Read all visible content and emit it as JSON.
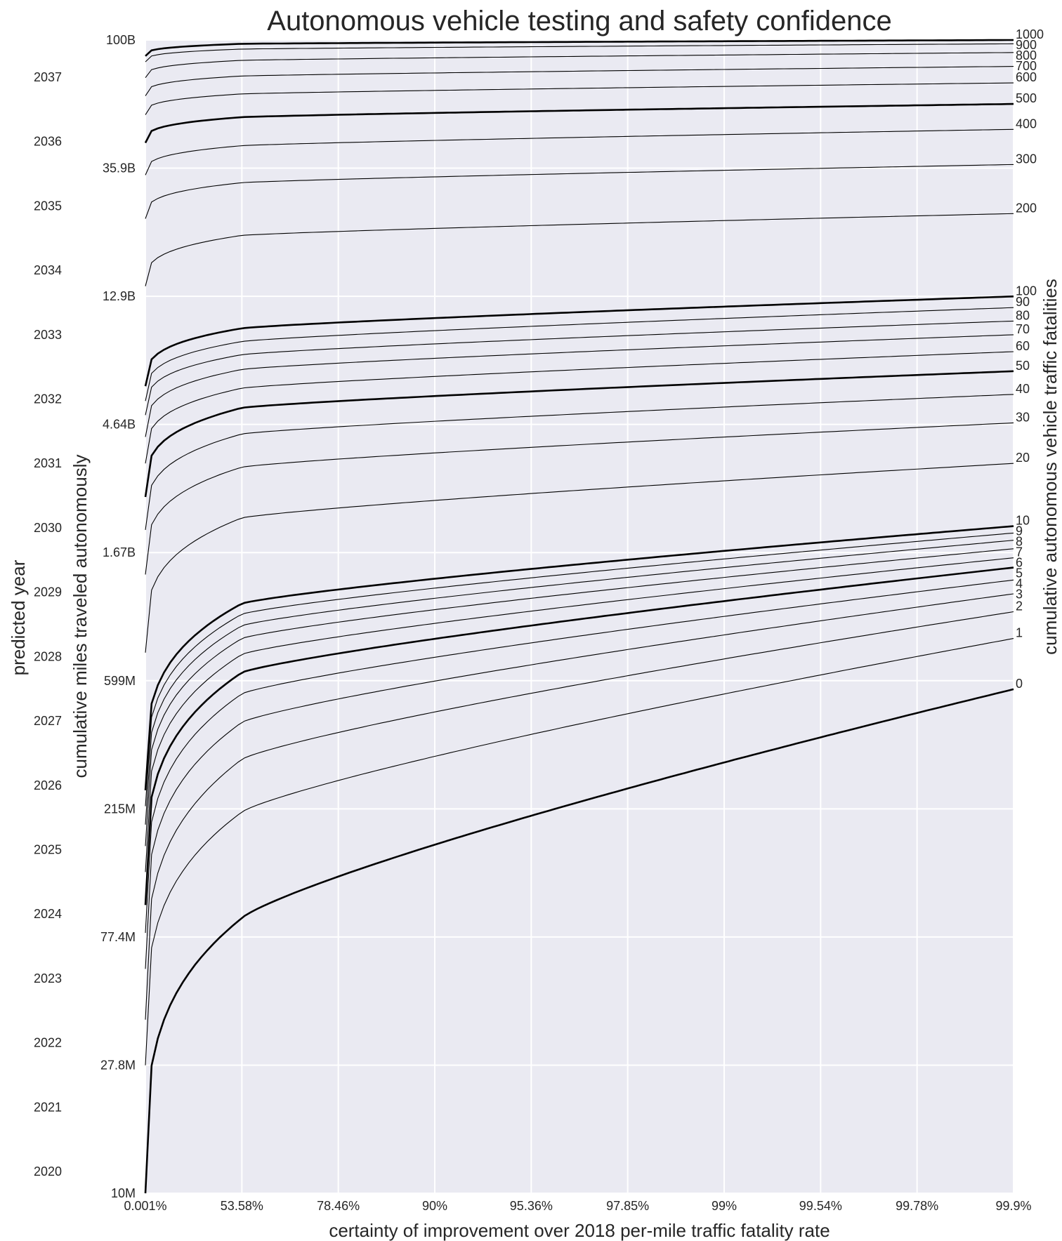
{
  "chart_data": {
    "type": "line",
    "title": "Autonomous vehicle testing and safety confidence",
    "xlabel": "certainty of improvement over 2018 per-mile traffic fatality rate",
    "ylabel": "cumulative miles traveled autonomously",
    "y_left_outer_label": "predicted year",
    "y_right_label": "cumulative autonomous vehicle traffic fatalities",
    "x_ticks": [
      "0.001%",
      "53.58%",
      "78.46%",
      "90%",
      "95.36%",
      "97.85%",
      "99%",
      "99.54%",
      "99.78%",
      "99.9%"
    ],
    "y_ticks": [
      "10M",
      "27.8M",
      "77.4M",
      "215M",
      "599M",
      "1.67B",
      "4.64B",
      "12.9B",
      "35.9B",
      "100B"
    ],
    "y_range_miles": [
      10000000,
      100000000000
    ],
    "y_scale": "log",
    "year_ticks": [
      "2020",
      "2021",
      "2022",
      "2023",
      "2024",
      "2025",
      "2026",
      "2027",
      "2028",
      "2029",
      "2030",
      "2031",
      "2032",
      "2033",
      "2034",
      "2035",
      "2036",
      "2037"
    ],
    "grid": true,
    "series": [
      {
        "name": "0",
        "x": [
          0.001,
          53.58,
          90,
          99.9
        ],
        "y": [
          10000000,
          90000000,
          215000000,
          560000000
        ]
      },
      {
        "name": "1",
        "x": [
          0.001,
          53.58,
          90,
          99.9
        ],
        "y": [
          27800000,
          210000000,
          420000000,
          840000000
        ]
      },
      {
        "name": "2",
        "x": [
          0.001,
          53.58,
          90,
          99.9
        ],
        "y": [
          40000000,
          320000000,
          580000000,
          1040000000
        ]
      },
      {
        "name": "3",
        "x": [
          0.001,
          53.58,
          90,
          99.9
        ],
        "y": [
          60000000,
          430000000,
          730000000,
          1200000000
        ]
      },
      {
        "name": "4",
        "x": [
          0.001,
          53.58,
          90,
          99.9
        ],
        "y": [
          80000000,
          540000000,
          870000000,
          1340000000
        ]
      },
      {
        "name": "5",
        "x": [
          0.001,
          53.58,
          90,
          99.9
        ],
        "y": [
          100000000,
          640000000,
          1000000000,
          1480000000
        ]
      },
      {
        "name": "6",
        "x": [
          0.001,
          53.58,
          90,
          99.9
        ],
        "y": [
          130000000,
          740000000,
          1120000000,
          1600000000
        ]
      },
      {
        "name": "7",
        "x": [
          0.001,
          53.58,
          90,
          99.9
        ],
        "y": [
          160000000,
          840000000,
          1240000000,
          1720000000
        ]
      },
      {
        "name": "8",
        "x": [
          0.001,
          53.58,
          90,
          99.9
        ],
        "y": [
          190000000,
          930000000,
          1360000000,
          1840000000
        ]
      },
      {
        "name": "9",
        "x": [
          0.001,
          53.58,
          90,
          99.9
        ],
        "y": [
          220000000,
          1020000000,
          1460000000,
          1950000000
        ]
      },
      {
        "name": "10",
        "x": [
          0.001,
          53.58,
          90,
          99.9
        ],
        "y": [
          250000000,
          1110000000,
          1570000000,
          2060000000
        ]
      },
      {
        "name": "20",
        "x": [
          0.001,
          53.58,
          90,
          99.9
        ],
        "y": [
          750000000,
          2200000000,
          2800000000,
          3400000000
        ]
      },
      {
        "name": "30",
        "x": [
          0.001,
          53.58,
          90,
          99.9
        ],
        "y": [
          1400000000,
          3300000000,
          4000000000,
          4700000000
        ]
      },
      {
        "name": "40",
        "x": [
          0.001,
          53.58,
          90,
          99.9
        ],
        "y": [
          2000000000,
          4300000000,
          5100000000,
          5900000000
        ]
      },
      {
        "name": "50",
        "x": [
          0.001,
          53.58,
          90,
          99.9
        ],
        "y": [
          2600000000,
          5300000000,
          6200000000,
          7100000000
        ]
      },
      {
        "name": "60",
        "x": [
          0.001,
          53.58,
          90,
          99.9
        ],
        "y": [
          3400000000,
          6200000000,
          7300000000,
          8300000000
        ]
      },
      {
        "name": "70",
        "x": [
          0.001,
          53.58,
          90,
          99.9
        ],
        "y": [
          4200000000,
          7200000000,
          8400000000,
          9500000000
        ]
      },
      {
        "name": "80",
        "x": [
          0.001,
          53.58,
          90,
          99.9
        ],
        "y": [
          5000000000,
          8100000000,
          9400000000,
          10600000000
        ]
      },
      {
        "name": "90",
        "x": [
          0.001,
          53.58,
          90,
          99.9
        ],
        "y": [
          5600000000,
          9000000000,
          10400000000,
          11800000000
        ]
      },
      {
        "name": "100",
        "x": [
          0.001,
          53.58,
          90,
          99.9
        ],
        "y": [
          6300000000,
          10000000000,
          11600000000,
          12900000000
        ]
      },
      {
        "name": "200",
        "x": [
          0.001,
          53.58,
          90,
          99.9
        ],
        "y": [
          14000000000,
          21000000000,
          23000000000,
          25000000000
        ]
      },
      {
        "name": "300",
        "x": [
          0.001,
          53.58,
          90,
          99.9
        ],
        "y": [
          24000000000,
          32000000000,
          34500000000,
          37000000000
        ]
      },
      {
        "name": "400",
        "x": [
          0.001,
          53.58,
          90,
          99.9
        ],
        "y": [
          34000000000,
          43000000000,
          46000000000,
          49000000000
        ]
      },
      {
        "name": "500",
        "x": [
          0.001,
          53.58,
          90,
          99.9
        ],
        "y": [
          44000000000,
          54000000000,
          57000000000,
          60000000000
        ]
      },
      {
        "name": "600",
        "x": [
          0.001,
          53.58,
          90,
          99.9
        ],
        "y": [
          55000000000,
          65000000000,
          68000000000,
          71000000000
        ]
      },
      {
        "name": "700",
        "x": [
          0.001,
          53.58,
          90,
          99.9
        ],
        "y": [
          64000000000,
          75000000000,
          78500000000,
          81000000000
        ]
      },
      {
        "name": "800",
        "x": [
          0.001,
          53.58,
          90,
          99.9
        ],
        "y": [
          74000000000,
          85000000000,
          88000000000,
          90500000000
        ]
      },
      {
        "name": "900",
        "x": [
          0.001,
          53.58,
          90,
          99.9
        ],
        "y": [
          84000000000,
          93000000000,
          95500000000,
          97000000000
        ]
      },
      {
        "name": "1000",
        "x": [
          0.001,
          53.58,
          90,
          99.9
        ],
        "y": [
          88000000000,
          97000000000,
          99000000000,
          100000000000
        ]
      }
    ]
  }
}
